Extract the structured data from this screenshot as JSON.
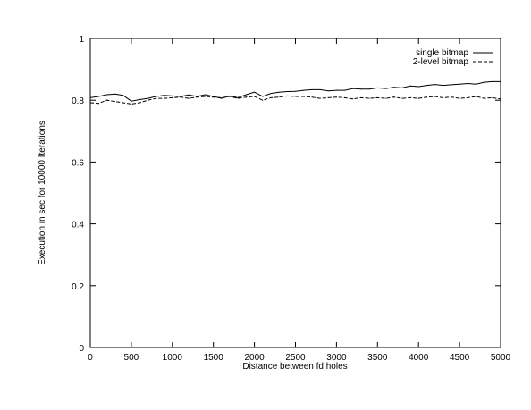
{
  "chart_data": {
    "type": "line",
    "title": "",
    "xlabel": "Distance between fd holes",
    "ylabel": "Execution in sec for 10000 Iterations",
    "xlim": [
      0,
      5000
    ],
    "ylim": [
      0,
      1
    ],
    "xticks": [
      0,
      500,
      1000,
      1500,
      2000,
      2500,
      3000,
      3500,
      4000,
      4500,
      5000
    ],
    "yticks": [
      0,
      0.2,
      0.4,
      0.6,
      0.8,
      1
    ],
    "xtick_labels": [
      "0",
      "500",
      "1000",
      "1500",
      "2000",
      "2500",
      "3000",
      "3500",
      "4000",
      "4500",
      "5000"
    ],
    "ytick_labels": [
      "0",
      "0.2",
      "0.4",
      "0.6",
      "0.8",
      "1"
    ],
    "grid": false,
    "legend_position": "top-right",
    "series": [
      {
        "name": "single bitmap",
        "style": "solid",
        "x": [
          0,
          100,
          200,
          300,
          400,
          500,
          600,
          700,
          800,
          900,
          1000,
          1100,
          1200,
          1300,
          1400,
          1500,
          1600,
          1700,
          1800,
          1900,
          2000,
          2100,
          2200,
          2300,
          2400,
          2500,
          2600,
          2700,
          2800,
          2900,
          3000,
          3100,
          3200,
          3300,
          3400,
          3500,
          3600,
          3700,
          3800,
          3900,
          4000,
          4100,
          4200,
          4300,
          4400,
          4500,
          4600,
          4700,
          4800,
          4900,
          5000
        ],
        "y": [
          0.808,
          0.812,
          0.818,
          0.82,
          0.816,
          0.797,
          0.802,
          0.806,
          0.812,
          0.816,
          0.814,
          0.812,
          0.817,
          0.812,
          0.818,
          0.812,
          0.806,
          0.814,
          0.808,
          0.818,
          0.826,
          0.812,
          0.822,
          0.826,
          0.828,
          0.829,
          0.832,
          0.834,
          0.834,
          0.83,
          0.832,
          0.832,
          0.838,
          0.836,
          0.836,
          0.84,
          0.838,
          0.842,
          0.84,
          0.846,
          0.844,
          0.848,
          0.851,
          0.848,
          0.85,
          0.852,
          0.854,
          0.852,
          0.858,
          0.86,
          0.86
        ]
      },
      {
        "name": "2-level bitmap",
        "style": "dashed",
        "x": [
          0,
          100,
          200,
          300,
          400,
          500,
          600,
          700,
          800,
          900,
          1000,
          1100,
          1200,
          1300,
          1400,
          1500,
          1600,
          1700,
          1800,
          1900,
          2000,
          2100,
          2200,
          2300,
          2400,
          2500,
          2600,
          2700,
          2800,
          2900,
          3000,
          3100,
          3200,
          3300,
          3400,
          3500,
          3600,
          3700,
          3800,
          3900,
          4000,
          4100,
          4200,
          4300,
          4400,
          4500,
          4600,
          4700,
          4800,
          4900,
          5000
        ],
        "y": [
          0.792,
          0.79,
          0.8,
          0.796,
          0.792,
          0.788,
          0.792,
          0.8,
          0.806,
          0.806,
          0.808,
          0.81,
          0.806,
          0.81,
          0.812,
          0.81,
          0.808,
          0.812,
          0.806,
          0.81,
          0.812,
          0.8,
          0.808,
          0.81,
          0.814,
          0.812,
          0.812,
          0.81,
          0.806,
          0.808,
          0.81,
          0.808,
          0.804,
          0.808,
          0.806,
          0.808,
          0.806,
          0.81,
          0.806,
          0.808,
          0.806,
          0.81,
          0.812,
          0.808,
          0.81,
          0.806,
          0.808,
          0.812,
          0.806,
          0.808,
          0.804
        ]
      }
    ]
  }
}
